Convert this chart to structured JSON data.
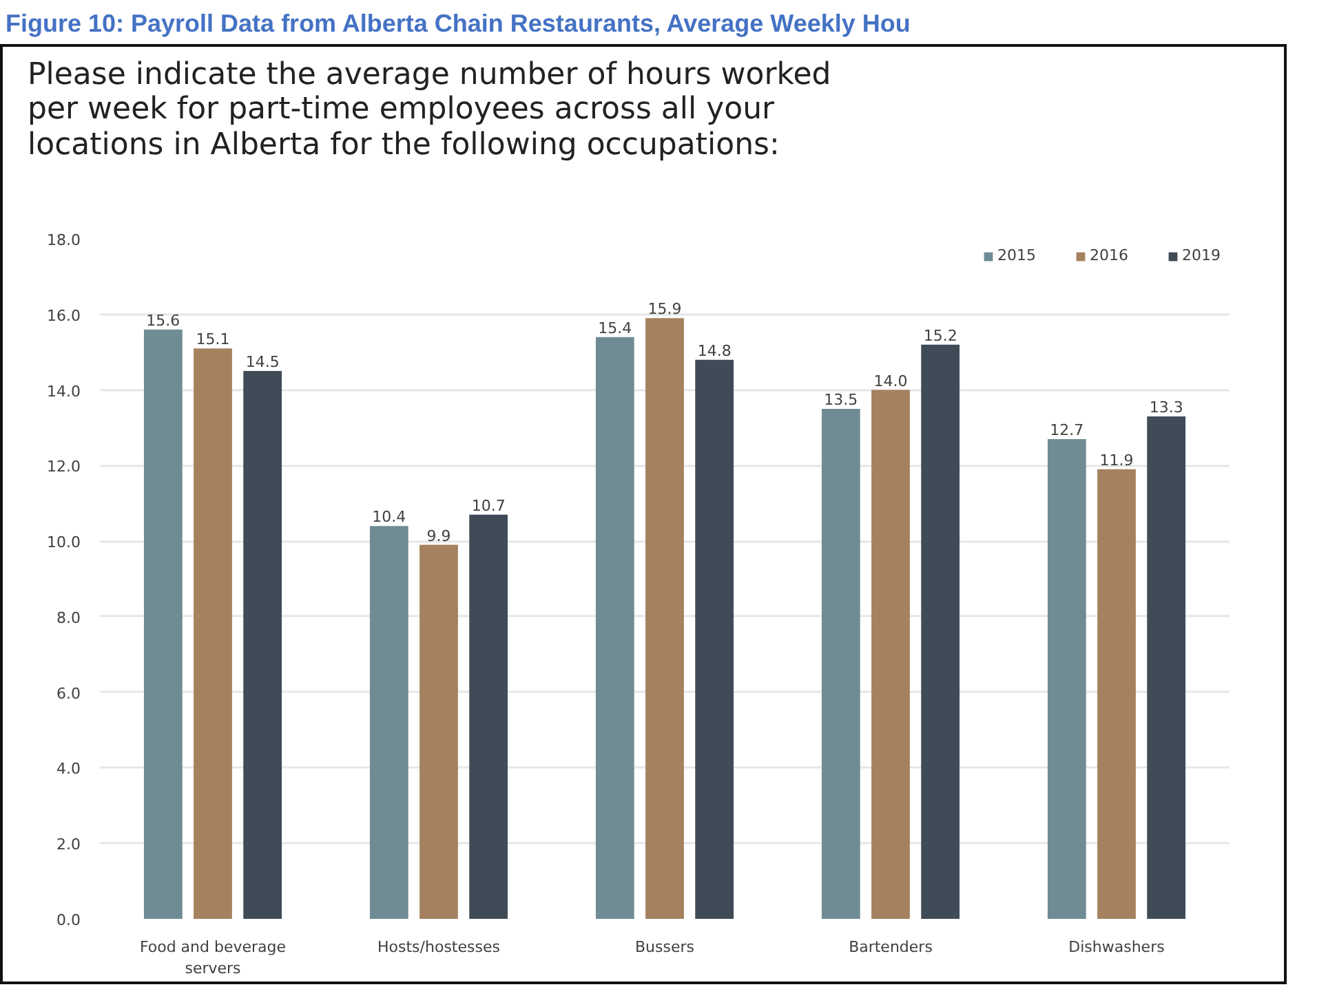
{
  "chart_data": {
    "type": "bar",
    "title": "Figure 10: Payroll Data from Alberta Chain Restaurants, Average Weekly Hou",
    "subtitle": "Please indicate the average number of hours worked per week for part-time employees across all your locations in Alberta for the following occupations:",
    "categories": [
      "Food and beverage servers",
      "Hosts/hostesses",
      "Bussers",
      "Bartenders",
      "Dishwashers"
    ],
    "series": [
      {
        "name": "2015",
        "color": "#6f8c94",
        "values": [
          15.6,
          10.4,
          15.4,
          13.5,
          12.7
        ],
        "value_labels": [
          "15.6",
          "10.4",
          "15.4",
          "13.5",
          "12.7"
        ]
      },
      {
        "name": "2016",
        "color": "#a5815f",
        "values": [
          15.1,
          9.9,
          15.9,
          14.0,
          11.9
        ],
        "value_labels": [
          "15.1",
          "9.9",
          "15.9",
          "14.0",
          "11.9"
        ]
      },
      {
        "name": "2019",
        "color": "#3f4b57",
        "values": [
          14.5,
          10.7,
          14.8,
          15.2,
          13.3
        ],
        "value_labels": [
          "14.5",
          "10.7",
          "14.8",
          "15.2",
          "13.3"
        ]
      }
    ],
    "ylim": [
      0,
      18
    ],
    "yticks": [
      {
        "value": 0,
        "label": "0.0"
      },
      {
        "value": 2,
        "label": "2.0"
      },
      {
        "value": 4,
        "label": "4.0"
      },
      {
        "value": 6,
        "label": "6.0"
      },
      {
        "value": 8,
        "label": "8.0"
      },
      {
        "value": 10,
        "label": "10.0"
      },
      {
        "value": 12,
        "label": "12.0"
      },
      {
        "value": 14,
        "label": "14.0"
      },
      {
        "value": 16,
        "label": "16.0"
      },
      {
        "value": 18,
        "label": "18.0"
      }
    ],
    "grid": "y",
    "legend": "top right"
  }
}
